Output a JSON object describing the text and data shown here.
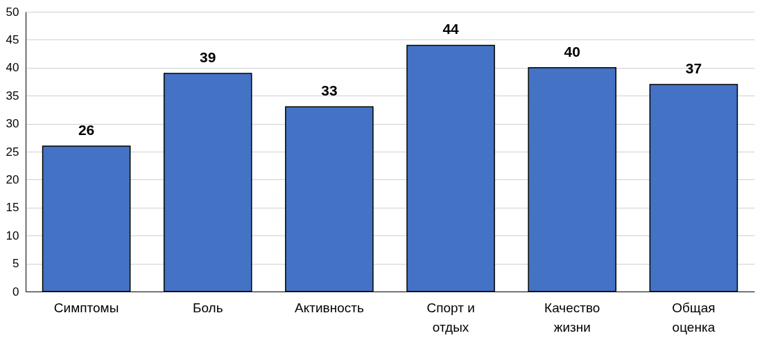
{
  "chart_data": {
    "type": "bar",
    "categories": [
      "Симптомы",
      "Боль",
      "Активность",
      "Спорт и отдых",
      "Качество жизни",
      "Общая оценка"
    ],
    "values": [
      26,
      39,
      33,
      44,
      40,
      37
    ],
    "color": "#4472c4",
    "ylim": [
      0,
      50
    ],
    "yticks": [
      0,
      5,
      10,
      15,
      20,
      25,
      30,
      35,
      40,
      45,
      50
    ],
    "grid": "y",
    "data_labels": true
  }
}
